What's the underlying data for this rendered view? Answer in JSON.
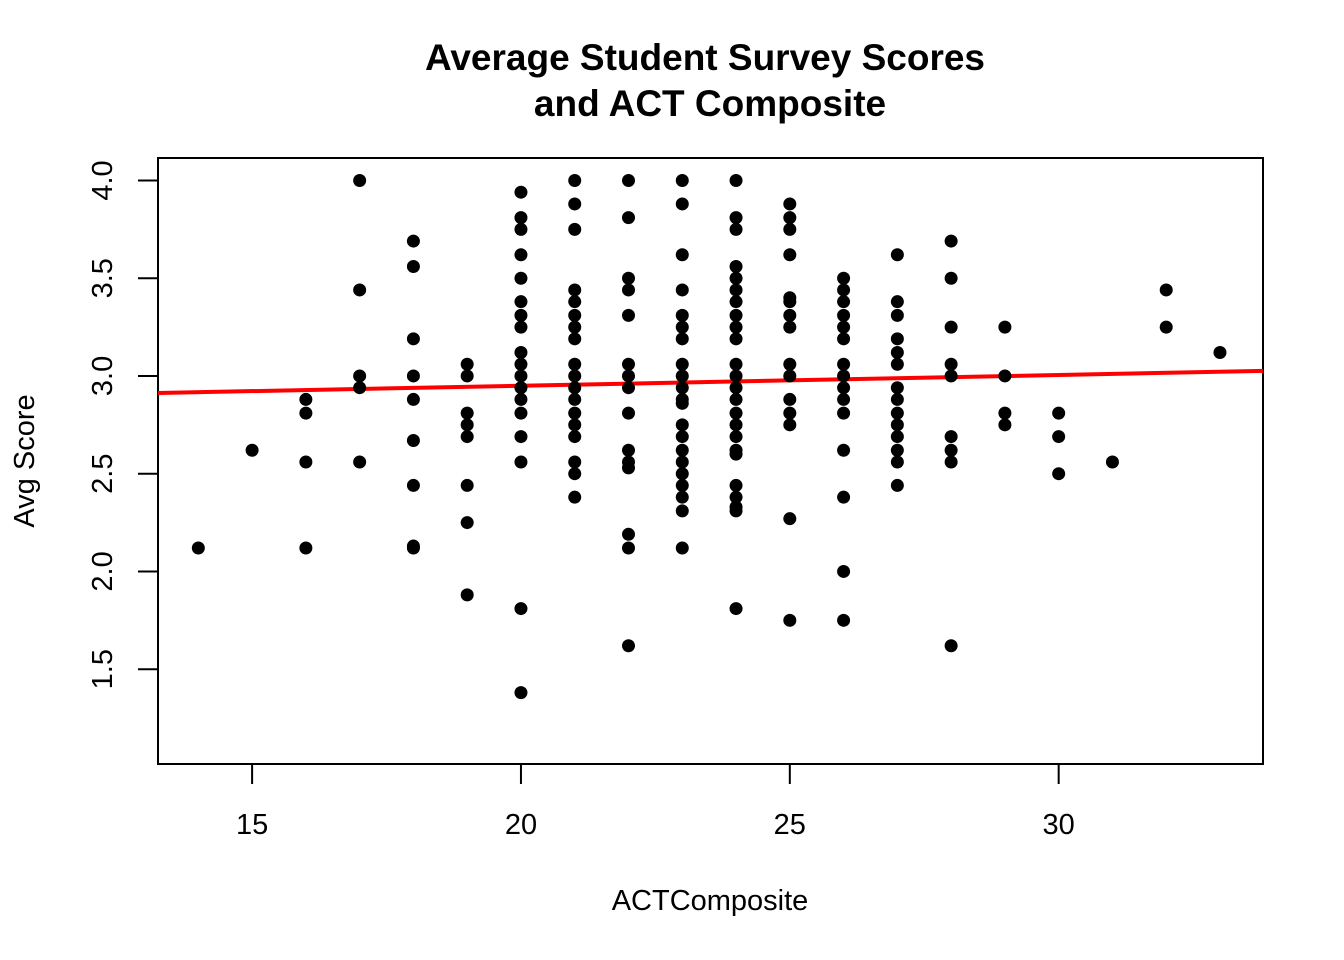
{
  "chart_data": {
    "type": "scatter",
    "title": [
      "Average Student Survey Scores",
      "and ACT Composite"
    ],
    "xlabel": "ACTComposite",
    "ylabel": "Avg Score",
    "xlim": [
      13.25,
      33.8
    ],
    "ylim": [
      1.015,
      4.115
    ],
    "xticks": [
      15,
      20,
      25,
      30
    ],
    "yticks": [
      1.5,
      2.0,
      2.5,
      3.0,
      3.5,
      4.0
    ],
    "xtick_labels": [
      "15",
      "20",
      "25",
      "30"
    ],
    "ytick_labels": [
      "1.5",
      "2.0",
      "2.5",
      "3.0",
      "3.5",
      "4.0"
    ],
    "grid": false,
    "legend": "none",
    "point_color": "#000000",
    "regression_line": {
      "color": "#ff0000",
      "intercept": 2.84,
      "slope": 0.0055
    },
    "points": [
      [
        14,
        2.12
      ],
      [
        15,
        2.62
      ],
      [
        16,
        2.88
      ],
      [
        16,
        2.81
      ],
      [
        16,
        2.56
      ],
      [
        16,
        2.12
      ],
      [
        17,
        4.0
      ],
      [
        17,
        3.44
      ],
      [
        17,
        3.0
      ],
      [
        17,
        2.94
      ],
      [
        17,
        2.56
      ],
      [
        18,
        3.69
      ],
      [
        18,
        3.56
      ],
      [
        18,
        3.19
      ],
      [
        18,
        3.0
      ],
      [
        18,
        2.88
      ],
      [
        18,
        2.67
      ],
      [
        18,
        2.44
      ],
      [
        18,
        2.13
      ],
      [
        18,
        2.12
      ],
      [
        19,
        3.06
      ],
      [
        19,
        3.0
      ],
      [
        19,
        2.81
      ],
      [
        19,
        2.75
      ],
      [
        19,
        2.69
      ],
      [
        19,
        2.44
      ],
      [
        19,
        2.25
      ],
      [
        19,
        1.88
      ],
      [
        20,
        3.94
      ],
      [
        20,
        3.81
      ],
      [
        20,
        3.75
      ],
      [
        20,
        3.62
      ],
      [
        20,
        3.5
      ],
      [
        20,
        3.38
      ],
      [
        20,
        3.31
      ],
      [
        20,
        3.25
      ],
      [
        20,
        3.12
      ],
      [
        20,
        3.06
      ],
      [
        20,
        3.0
      ],
      [
        20,
        2.94
      ],
      [
        20,
        2.88
      ],
      [
        20,
        2.81
      ],
      [
        20,
        2.69
      ],
      [
        20,
        2.56
      ],
      [
        20,
        1.81
      ],
      [
        20,
        1.38
      ],
      [
        21,
        4.0
      ],
      [
        21,
        3.88
      ],
      [
        21,
        3.75
      ],
      [
        21,
        3.44
      ],
      [
        21,
        3.38
      ],
      [
        21,
        3.31
      ],
      [
        21,
        3.25
      ],
      [
        21,
        3.19
      ],
      [
        21,
        3.06
      ],
      [
        21,
        3.0
      ],
      [
        21,
        2.94
      ],
      [
        21,
        2.88
      ],
      [
        21,
        2.81
      ],
      [
        21,
        2.75
      ],
      [
        21,
        2.69
      ],
      [
        21,
        2.56
      ],
      [
        21,
        2.5
      ],
      [
        21,
        2.38
      ],
      [
        22,
        4.0
      ],
      [
        22,
        3.81
      ],
      [
        22,
        3.5
      ],
      [
        22,
        3.44
      ],
      [
        22,
        3.31
      ],
      [
        22,
        3.06
      ],
      [
        22,
        3.0
      ],
      [
        22,
        2.94
      ],
      [
        22,
        2.81
      ],
      [
        22,
        2.62
      ],
      [
        22,
        2.56
      ],
      [
        22,
        2.53
      ],
      [
        22,
        2.19
      ],
      [
        22,
        2.12
      ],
      [
        22,
        1.62
      ],
      [
        23,
        4.0
      ],
      [
        23,
        3.88
      ],
      [
        23,
        3.62
      ],
      [
        23,
        3.44
      ],
      [
        23,
        3.31
      ],
      [
        23,
        3.25
      ],
      [
        23,
        3.19
      ],
      [
        23,
        3.06
      ],
      [
        23,
        3.0
      ],
      [
        23,
        2.94
      ],
      [
        23,
        2.88
      ],
      [
        23,
        2.86
      ],
      [
        23,
        2.75
      ],
      [
        23,
        2.69
      ],
      [
        23,
        2.62
      ],
      [
        23,
        2.56
      ],
      [
        23,
        2.5
      ],
      [
        23,
        2.44
      ],
      [
        23,
        2.38
      ],
      [
        23,
        2.31
      ],
      [
        23,
        2.12
      ],
      [
        24,
        4.0
      ],
      [
        24,
        3.81
      ],
      [
        24,
        3.75
      ],
      [
        24,
        3.56
      ],
      [
        24,
        3.5
      ],
      [
        24,
        3.44
      ],
      [
        24,
        3.38
      ],
      [
        24,
        3.31
      ],
      [
        24,
        3.25
      ],
      [
        24,
        3.19
      ],
      [
        24,
        3.06
      ],
      [
        24,
        3.0
      ],
      [
        24,
        2.94
      ],
      [
        24,
        2.88
      ],
      [
        24,
        2.81
      ],
      [
        24,
        2.75
      ],
      [
        24,
        2.69
      ],
      [
        24,
        2.62
      ],
      [
        24,
        2.6
      ],
      [
        24,
        2.44
      ],
      [
        24,
        2.38
      ],
      [
        24,
        2.33
      ],
      [
        24,
        2.31
      ],
      [
        24,
        1.81
      ],
      [
        25,
        3.88
      ],
      [
        25,
        3.81
      ],
      [
        25,
        3.75
      ],
      [
        25,
        3.62
      ],
      [
        25,
        3.4
      ],
      [
        25,
        3.38
      ],
      [
        25,
        3.31
      ],
      [
        25,
        3.25
      ],
      [
        25,
        3.06
      ],
      [
        25,
        3.0
      ],
      [
        25,
        2.88
      ],
      [
        25,
        2.81
      ],
      [
        25,
        2.75
      ],
      [
        25,
        2.27
      ],
      [
        25,
        1.75
      ],
      [
        26,
        3.5
      ],
      [
        26,
        3.44
      ],
      [
        26,
        3.38
      ],
      [
        26,
        3.31
      ],
      [
        26,
        3.25
      ],
      [
        26,
        3.19
      ],
      [
        26,
        3.06
      ],
      [
        26,
        3.0
      ],
      [
        26,
        2.94
      ],
      [
        26,
        2.88
      ],
      [
        26,
        2.81
      ],
      [
        26,
        2.62
      ],
      [
        26,
        2.38
      ],
      [
        26,
        2.0
      ],
      [
        26,
        1.75
      ],
      [
        27,
        3.62
      ],
      [
        27,
        3.38
      ],
      [
        27,
        3.31
      ],
      [
        27,
        3.19
      ],
      [
        27,
        3.12
      ],
      [
        27,
        3.06
      ],
      [
        27,
        2.94
      ],
      [
        27,
        2.88
      ],
      [
        27,
        2.81
      ],
      [
        27,
        2.75
      ],
      [
        27,
        2.69
      ],
      [
        27,
        2.62
      ],
      [
        27,
        2.56
      ],
      [
        27,
        2.44
      ],
      [
        28,
        3.69
      ],
      [
        28,
        3.5
      ],
      [
        28,
        3.25
      ],
      [
        28,
        3.06
      ],
      [
        28,
        3.0
      ],
      [
        28,
        2.69
      ],
      [
        28,
        2.62
      ],
      [
        28,
        2.56
      ],
      [
        28,
        1.62
      ],
      [
        29,
        3.25
      ],
      [
        29,
        3.0
      ],
      [
        29,
        2.81
      ],
      [
        29,
        2.75
      ],
      [
        30,
        2.81
      ],
      [
        30,
        2.69
      ],
      [
        30,
        2.5
      ],
      [
        31,
        2.56
      ],
      [
        32,
        3.44
      ],
      [
        32,
        3.25
      ],
      [
        33,
        3.12
      ]
    ]
  }
}
